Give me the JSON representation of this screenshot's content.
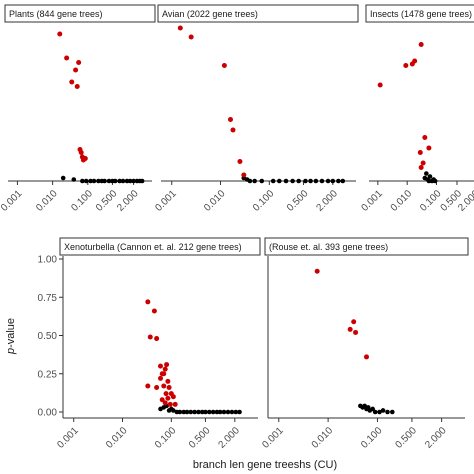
{
  "chart_data": {
    "type": "scatter",
    "xlabel": "branch len gene treeshs (CU)",
    "ylabel_italic": "p",
    "ylabel_rest": "-value",
    "x_scale": "log",
    "x_ticks": [
      0.001,
      0.01,
      0.1,
      0.5,
      2.0
    ],
    "x_tick_labels": [
      "0.001",
      "0.010",
      "0.100",
      "0.500",
      "2.000"
    ],
    "y_ticks": [
      0.0,
      0.25,
      0.5,
      0.75,
      1.0
    ],
    "y_tick_labels": [
      "0.00",
      "0.25",
      "0.50",
      "0.75",
      "1.00"
    ],
    "ylim": [
      0,
      1
    ],
    "colors": {
      "significant": "#cc0000",
      "nonsignificant": "#000000"
    },
    "panels": [
      {
        "title": "Plants (844 gene trees)",
        "red": [
          [
            0.016,
            0.98
          ],
          [
            0.025,
            0.82
          ],
          [
            0.035,
            0.66
          ],
          [
            0.045,
            0.74
          ],
          [
            0.05,
            0.63
          ],
          [
            0.055,
            0.79
          ],
          [
            0.06,
            0.21
          ],
          [
            0.065,
            0.19
          ],
          [
            0.085,
            0.15
          ],
          [
            0.07,
            0.16
          ],
          [
            0.075,
            0.14
          ]
        ],
        "black": [
          [
            0.02,
            0.02
          ],
          [
            0.04,
            0.01
          ],
          [
            0.07,
            0.0
          ],
          [
            0.09,
            0.0
          ],
          [
            0.12,
            0.0
          ],
          [
            0.15,
            0.0
          ],
          [
            0.2,
            0.0
          ],
          [
            0.25,
            0.0
          ],
          [
            0.3,
            0.0
          ],
          [
            0.4,
            0.0
          ],
          [
            0.5,
            0.0
          ],
          [
            0.6,
            0.0
          ],
          [
            0.8,
            0.0
          ],
          [
            1.0,
            0.0
          ],
          [
            1.3,
            0.0
          ],
          [
            1.6,
            0.0
          ],
          [
            2.0,
            0.0
          ],
          [
            2.5,
            0.0
          ],
          [
            3.0,
            0.0
          ],
          [
            3.5,
            0.0
          ]
        ]
      },
      {
        "title": "Avian (2022 gene trees)",
        "red": [
          [
            0.0015,
            1.02
          ],
          [
            0.0025,
            0.96
          ],
          [
            0.012,
            0.77
          ],
          [
            0.016,
            0.41
          ],
          [
            0.018,
            0.34
          ],
          [
            0.025,
            0.13
          ],
          [
            0.03,
            0.04
          ]
        ],
        "black": [
          [
            0.03,
            0.02
          ],
          [
            0.035,
            0.01
          ],
          [
            0.04,
            0.0
          ],
          [
            0.05,
            0.0
          ],
          [
            0.07,
            0.0
          ],
          [
            0.12,
            0.0
          ],
          [
            0.16,
            0.0
          ],
          [
            0.22,
            0.0
          ],
          [
            0.3,
            0.0
          ],
          [
            0.4,
            0.0
          ],
          [
            0.55,
            0.0
          ],
          [
            0.7,
            0.0
          ],
          [
            0.9,
            0.0
          ],
          [
            1.2,
            0.0
          ],
          [
            1.6,
            0.0
          ],
          [
            2.0,
            0.0
          ],
          [
            2.6,
            0.0
          ],
          [
            3.2,
            0.0
          ]
        ]
      },
      {
        "title": "Insects (1478 gene trees)",
        "red": [
          [
            0.0012,
            0.64
          ],
          [
            0.009,
            0.77
          ],
          [
            0.015,
            0.78
          ],
          [
            0.018,
            0.8
          ],
          [
            0.03,
            0.91
          ],
          [
            0.028,
            0.19
          ],
          [
            0.035,
            0.12
          ],
          [
            0.04,
            0.29
          ],
          [
            0.055,
            0.22
          ],
          [
            0.03,
            0.09
          ]
        ],
        "black": [
          [
            0.04,
            0.02
          ],
          [
            0.045,
            0.05
          ],
          [
            0.05,
            0.01
          ],
          [
            0.055,
            0.0
          ],
          [
            0.06,
            0.03
          ],
          [
            0.07,
            0.0
          ],
          [
            0.08,
            0.01
          ],
          [
            0.09,
            0.0
          ]
        ]
      },
      {
        "title": "Xenoturbella (Cannon et. al. 212 gene trees)",
        "red": [
          [
            0.033,
            0.72
          ],
          [
            0.037,
            0.49
          ],
          [
            0.045,
            0.66
          ],
          [
            0.05,
            0.48
          ],
          [
            0.06,
            0.3
          ],
          [
            0.065,
            0.25
          ],
          [
            0.07,
            0.25
          ],
          [
            0.075,
            0.28
          ],
          [
            0.08,
            0.31
          ],
          [
            0.085,
            0.2
          ],
          [
            0.06,
            0.22
          ],
          [
            0.07,
            0.17
          ],
          [
            0.09,
            0.16
          ],
          [
            0.1,
            0.12
          ],
          [
            0.11,
            0.1
          ],
          [
            0.075,
            0.06
          ],
          [
            0.085,
            0.09
          ],
          [
            0.033,
            0.17
          ],
          [
            0.05,
            0.16
          ],
          [
            0.095,
            0.05
          ],
          [
            0.12,
            0.05
          ],
          [
            0.065,
            0.08
          ],
          [
            0.078,
            0.12
          ]
        ],
        "black": [
          [
            0.06,
            0.02
          ],
          [
            0.07,
            0.03
          ],
          [
            0.08,
            0.04
          ],
          [
            0.09,
            0.01
          ],
          [
            0.1,
            0.02
          ],
          [
            0.11,
            0.01
          ],
          [
            0.13,
            0.0
          ],
          [
            0.15,
            0.0
          ],
          [
            0.18,
            0.0
          ],
          [
            0.21,
            0.0
          ],
          [
            0.25,
            0.0
          ],
          [
            0.3,
            0.0
          ],
          [
            0.36,
            0.0
          ],
          [
            0.43,
            0.0
          ],
          [
            0.5,
            0.0
          ],
          [
            0.6,
            0.0
          ],
          [
            0.72,
            0.0
          ],
          [
            0.86,
            0.0
          ],
          [
            1.0,
            0.0
          ],
          [
            1.2,
            0.0
          ],
          [
            1.45,
            0.0
          ],
          [
            1.75,
            0.0
          ],
          [
            2.1,
            0.0
          ],
          [
            2.5,
            0.0
          ]
        ]
      },
      {
        "title": "(Rouse et. al. 393 gene trees)",
        "red": [
          [
            0.006,
            0.92
          ],
          [
            0.028,
            0.54
          ],
          [
            0.033,
            0.59
          ],
          [
            0.036,
            0.52
          ],
          [
            0.06,
            0.36
          ]
        ],
        "black": [
          [
            0.045,
            0.04
          ],
          [
            0.05,
            0.03
          ],
          [
            0.055,
            0.04
          ],
          [
            0.06,
            0.02
          ],
          [
            0.065,
            0.03
          ],
          [
            0.07,
            0.01
          ],
          [
            0.08,
            0.02
          ],
          [
            0.09,
            0.0
          ],
          [
            0.11,
            0.0
          ],
          [
            0.13,
            0.01
          ],
          [
            0.16,
            0.0
          ],
          [
            0.2,
            0.0
          ]
        ]
      }
    ]
  }
}
